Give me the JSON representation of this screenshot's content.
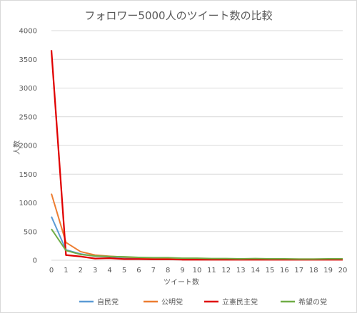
{
  "chart_data": {
    "type": "line",
    "title": "フォロワー5000人のツイート数の比較",
    "xlabel": "ツイート数",
    "ylabel": "人数",
    "x": [
      0,
      1,
      2,
      3,
      4,
      5,
      6,
      7,
      8,
      9,
      10,
      11,
      12,
      13,
      14,
      15,
      16,
      17,
      18,
      19,
      20
    ],
    "ylim": [
      0,
      4000
    ],
    "yticks": [
      0,
      500,
      1000,
      1500,
      2000,
      2500,
      3000,
      3500,
      4000
    ],
    "grid": true,
    "legend_position": "bottom",
    "series": [
      {
        "name": "自民党",
        "color": "#5B9BD5",
        "values": [
          760,
          180,
          110,
          70,
          60,
          45,
          35,
          30,
          30,
          25,
          25,
          20,
          20,
          20,
          20,
          20,
          15,
          15,
          15,
          15,
          15
        ]
      },
      {
        "name": "公明党",
        "color": "#ED7D31",
        "values": [
          1160,
          310,
          150,
          90,
          70,
          55,
          45,
          40,
          35,
          30,
          30,
          25,
          25,
          25,
          25,
          25,
          20,
          20,
          20,
          20,
          20
        ]
      },
      {
        "name": "立憲民主党",
        "color": "#E00000",
        "values": [
          3660,
          90,
          65,
          30,
          35,
          20,
          20,
          15,
          15,
          10,
          10,
          10,
          10,
          10,
          10,
          10,
          10,
          10,
          10,
          10,
          10
        ]
      },
      {
        "name": "希望の党",
        "color": "#70AD47",
        "values": [
          545,
          170,
          100,
          75,
          65,
          60,
          50,
          45,
          45,
          35,
          35,
          30,
          30,
          25,
          30,
          25,
          25,
          20,
          20,
          25,
          25
        ]
      }
    ]
  }
}
